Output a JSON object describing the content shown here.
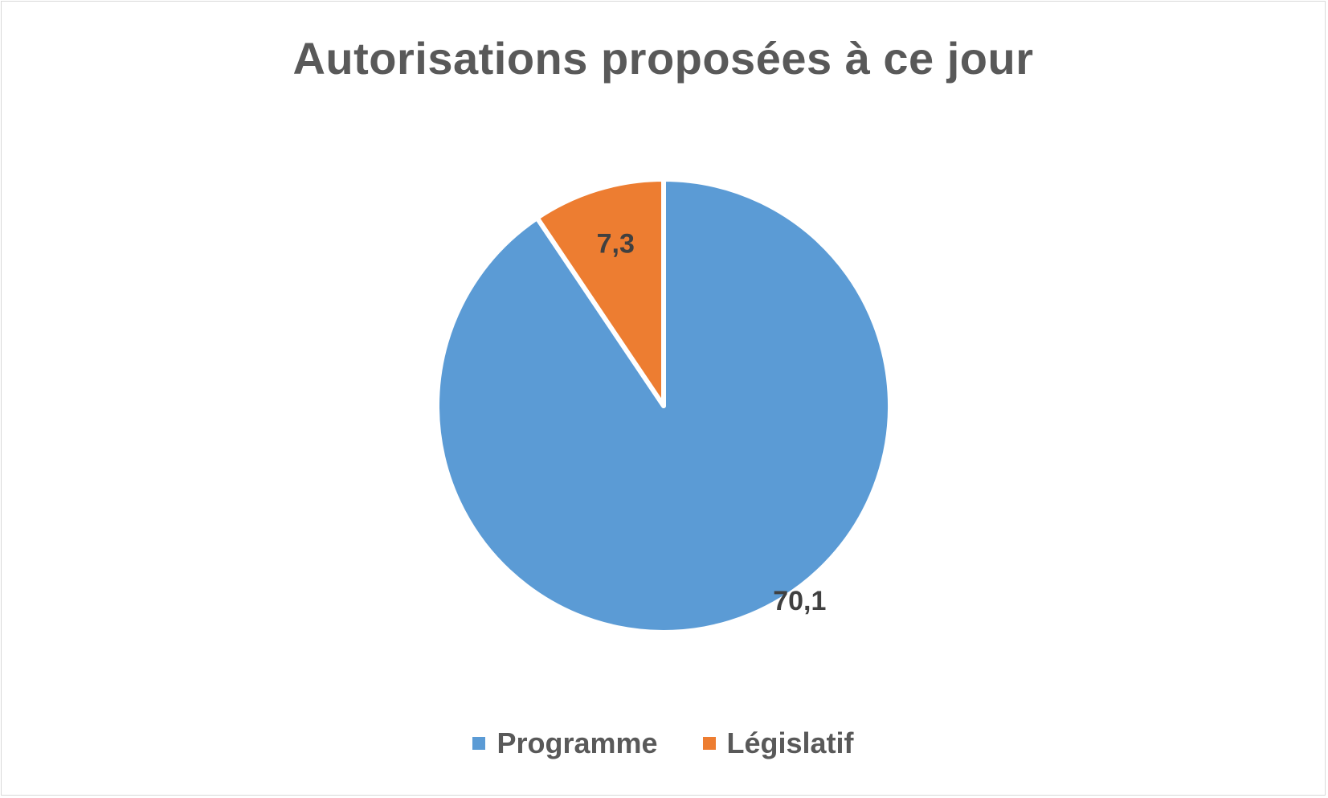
{
  "chart_data": {
    "type": "pie",
    "title": "Autorisations proposées à ce jour",
    "categories": [
      "Programme",
      "Législatif"
    ],
    "values": [
      70.1,
      7.3
    ],
    "data_labels": [
      "70,1",
      "7,3"
    ],
    "colors": [
      "#5b9bd5",
      "#ed7d31"
    ],
    "legend": "bottom"
  }
}
